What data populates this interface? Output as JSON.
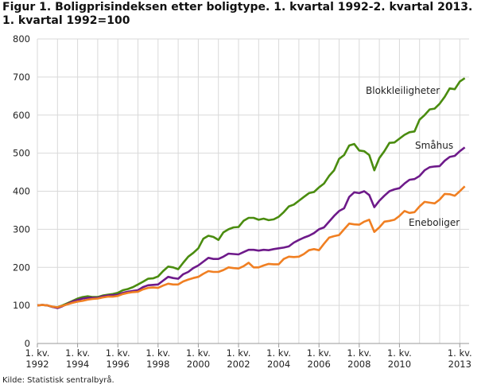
{
  "chart_data": {
    "type": "line",
    "title": "Figur 1. Boligprisindeksen etter boligtype. 1. kvartal 1992-2. kvartal 2013. 1. kvartal 1992=100",
    "source": "Kilde: Statistisk sentralbyrå.",
    "xlabel": "",
    "ylabel": "",
    "ylim": [
      0,
      800
    ],
    "yticks": [
      0,
      100,
      200,
      300,
      400,
      500,
      600,
      700,
      800
    ],
    "xticks": [
      {
        "line1": "1. kv.",
        "line2": "1992",
        "year": 1992
      },
      {
        "line1": "1. kv.",
        "line2": "1994",
        "year": 1994
      },
      {
        "line1": "1. kv.",
        "line2": "1996",
        "year": 1996
      },
      {
        "line1": "1. kv.",
        "line2": "1998",
        "year": 1998
      },
      {
        "line1": "1. kv.",
        "line2": "2000",
        "year": 2000
      },
      {
        "line1": "1. kv.",
        "line2": "2002",
        "year": 2002
      },
      {
        "line1": "1. kv.",
        "line2": "2004",
        "year": 2004
      },
      {
        "line1": "1. kv.",
        "line2": "2006",
        "year": 2006
      },
      {
        "line1": "1. kv.",
        "line2": "2008",
        "year": 2008
      },
      {
        "line1": "1. kv.",
        "line2": "2010",
        "year": 2010
      },
      {
        "line1": "1. kv.",
        "line2": "2013",
        "year": 2013
      }
    ],
    "grid": true,
    "x_range": [
      "1992K1",
      "2013K2"
    ],
    "series": [
      {
        "name": "Blokkleiligheter",
        "color": "#4a8c0f",
        "values": [
          100,
          101,
          100,
          96,
          95,
          100,
          106,
          112,
          118,
          122,
          124,
          122,
          122,
          126,
          128,
          130,
          133,
          140,
          143,
          148,
          155,
          162,
          170,
          171,
          176,
          190,
          202,
          200,
          195,
          212,
          228,
          238,
          250,
          275,
          283,
          280,
          272,
          292,
          300,
          305,
          306,
          322,
          330,
          330,
          325,
          328,
          324,
          326,
          333,
          345,
          360,
          365,
          375,
          385,
          395,
          398,
          410,
          420,
          440,
          455,
          485,
          495,
          520,
          524,
          507,
          505,
          495,
          455,
          487,
          505,
          527,
          528,
          538,
          548,
          555,
          557,
          588,
          600,
          615,
          617,
          630,
          648,
          670,
          668,
          688,
          697
        ]
      },
      {
        "name": "Småhus",
        "color": "#6e1a8a",
        "values": [
          100,
          101,
          100,
          96,
          93,
          98,
          104,
          110,
          114,
          118,
          120,
          120,
          120,
          124,
          126,
          127,
          128,
          133,
          136,
          138,
          140,
          148,
          153,
          154,
          155,
          165,
          175,
          172,
          170,
          182,
          188,
          198,
          205,
          215,
          225,
          222,
          222,
          228,
          236,
          235,
          234,
          240,
          246,
          246,
          244,
          246,
          245,
          248,
          250,
          252,
          255,
          265,
          272,
          278,
          283,
          290,
          300,
          305,
          320,
          335,
          348,
          355,
          385,
          397,
          395,
          400,
          390,
          358,
          375,
          388,
          400,
          405,
          408,
          420,
          430,
          432,
          440,
          455,
          463,
          465,
          466,
          480,
          490,
          493,
          505,
          515
        ]
      },
      {
        "name": "Eneboliger",
        "color": "#f07f22",
        "values": [
          100,
          101,
          100,
          97,
          95,
          99,
          103,
          107,
          110,
          112,
          115,
          117,
          118,
          121,
          123,
          123,
          125,
          130,
          133,
          135,
          136,
          142,
          146,
          147,
          146,
          152,
          157,
          155,
          155,
          163,
          168,
          172,
          175,
          183,
          190,
          188,
          188,
          193,
          200,
          198,
          197,
          203,
          212,
          200,
          200,
          205,
          209,
          208,
          208,
          222,
          228,
          227,
          228,
          235,
          245,
          248,
          245,
          262,
          278,
          282,
          285,
          300,
          315,
          313,
          312,
          320,
          325,
          293,
          305,
          320,
          322,
          325,
          335,
          348,
          343,
          345,
          360,
          372,
          370,
          368,
          378,
          393,
          392,
          388,
          400,
          413
        ]
      }
    ]
  }
}
